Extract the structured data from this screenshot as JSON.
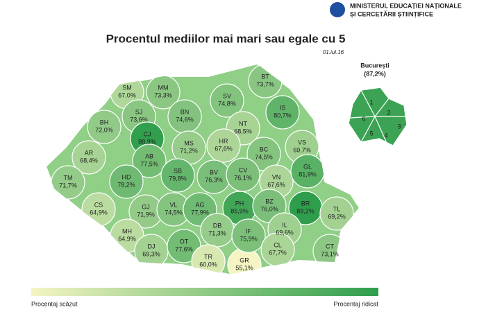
{
  "header": {
    "ministry": [
      "MINISTERUL EDUCAȚIEI NAȚIONALE",
      "ȘI CERCETĂRII ȘTIINȚIFICE"
    ]
  },
  "title": "Procentul mediilor mai mari sau egale cu 5",
  "date": "01.iul.16",
  "bucharest": {
    "name": "București",
    "value": 87.2,
    "value_label": "(87,2%)",
    "sectors": [
      "1",
      "2",
      "3",
      "4",
      "5",
      "6"
    ]
  },
  "counties": [
    {
      "code": "SM",
      "value": 67.0,
      "value_label": "67,0%"
    },
    {
      "code": "MM",
      "value": 73.3,
      "value_label": "73,3%"
    },
    {
      "code": "BT",
      "value": 73.7,
      "value_label": "73,7%"
    },
    {
      "code": "SV",
      "value": 74.8,
      "value_label": "74,8%"
    },
    {
      "code": "BH",
      "value": 72.0,
      "value_label": "72,0%"
    },
    {
      "code": "SJ",
      "value": 73.6,
      "value_label": "73,6%"
    },
    {
      "code": "CJ",
      "value": 88.9,
      "value_label": "88,9%"
    },
    {
      "code": "BN",
      "value": 74.6,
      "value_label": "74,6%"
    },
    {
      "code": "IS",
      "value": 80.7,
      "value_label": "80,7%"
    },
    {
      "code": "NT",
      "value": 68.5,
      "value_label": "68,5%"
    },
    {
      "code": "BC",
      "value": 74.5,
      "value_label": "74,5%"
    },
    {
      "code": "VS",
      "value": 69.7,
      "value_label": "69,7%"
    },
    {
      "code": "AR",
      "value": 68.4,
      "value_label": "68,4%"
    },
    {
      "code": "AB",
      "value": 77.5,
      "value_label": "77,5%"
    },
    {
      "code": "MS",
      "value": 71.2,
      "value_label": "71,2%"
    },
    {
      "code": "HR",
      "value": 67.6,
      "value_label": "67,6%"
    },
    {
      "code": "TM",
      "value": 71.7,
      "value_label": "71,7%"
    },
    {
      "code": "HD",
      "value": 78.2,
      "value_label": "78,2%"
    },
    {
      "code": "SB",
      "value": 79.8,
      "value_label": "79,8%"
    },
    {
      "code": "BV",
      "value": 76.3,
      "value_label": "76,3%"
    },
    {
      "code": "CV",
      "value": 76.1,
      "value_label": "76,1%"
    },
    {
      "code": "VN",
      "value": 67.6,
      "value_label": "67,6%"
    },
    {
      "code": "GL",
      "value": 81.9,
      "value_label": "81,9%"
    },
    {
      "code": "CS",
      "value": 64.9,
      "value_label": "64,9%"
    },
    {
      "code": "GJ",
      "value": 71.9,
      "value_label": "71,9%"
    },
    {
      "code": "VL",
      "value": 74.5,
      "value_label": "74,5%"
    },
    {
      "code": "AG",
      "value": 77.9,
      "value_label": "77,9%"
    },
    {
      "code": "PH",
      "value": 85.9,
      "value_label": "85,9%"
    },
    {
      "code": "BZ",
      "value": 76.0,
      "value_label": "76,0%"
    },
    {
      "code": "BR",
      "value": 89.2,
      "value_label": "89,2%"
    },
    {
      "code": "TL",
      "value": 69.2,
      "value_label": "69,2%"
    },
    {
      "code": "MH",
      "value": 64.9,
      "value_label": "64,9%"
    },
    {
      "code": "DJ",
      "value": 69.3,
      "value_label": "69,3%"
    },
    {
      "code": "OT",
      "value": 77.6,
      "value_label": "77,6%"
    },
    {
      "code": "DB",
      "value": 71.3,
      "value_label": "71,3%"
    },
    {
      "code": "TR",
      "value": 60.0,
      "value_label": "60,0%"
    },
    {
      "code": "GR",
      "value": 55.1,
      "value_label": "55,1%"
    },
    {
      "code": "IF",
      "value": 75.9,
      "value_label": "75,9%"
    },
    {
      "code": "IL",
      "value": 69.6,
      "value_label": "69,6%"
    },
    {
      "code": "CL",
      "value": 67.7,
      "value_label": "67,7%"
    },
    {
      "code": "CT",
      "value": 73.1,
      "value_label": "73,1%"
    }
  ],
  "legend": {
    "low": "Procentaj scăzut",
    "high": "Procentaj ridicat"
  }
}
